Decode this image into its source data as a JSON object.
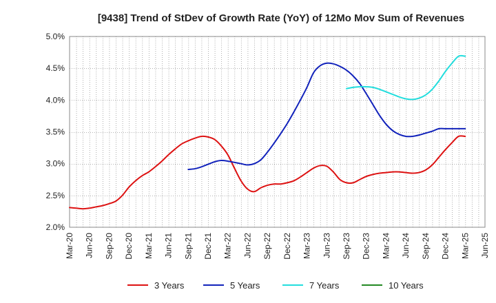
{
  "chart_data": {
    "type": "line",
    "title": "[9438]  Trend of StDev of Growth Rate (YoY) of 12Mo Mov Sum of Revenues",
    "xlabel": "",
    "ylabel": "",
    "ylim": [
      2.0,
      5.0
    ],
    "y_ticks": [
      "2.0%",
      "2.5%",
      "3.0%",
      "3.5%",
      "4.0%",
      "4.5%",
      "5.0%"
    ],
    "y_tick_values": [
      2.0,
      2.5,
      3.0,
      3.5,
      4.0,
      4.5,
      5.0
    ],
    "x_ticks": [
      "Mar-20",
      "Jun-20",
      "Sep-20",
      "Dec-20",
      "Mar-21",
      "Jun-21",
      "Sep-21",
      "Dec-21",
      "Mar-22",
      "Jun-22",
      "Sep-22",
      "Dec-22",
      "Mar-23",
      "Jun-23",
      "Sep-23",
      "Dec-23",
      "Mar-24",
      "Jun-24",
      "Sep-24",
      "Dec-24",
      "Mar-25",
      "Jun-25"
    ],
    "x_range_months": [
      0,
      63
    ],
    "grid": true,
    "legend_position": "bottom",
    "series": [
      {
        "name": "3 Years",
        "color": "#dd1111",
        "x": [
          0,
          1,
          2,
          3,
          4,
          5,
          6,
          7,
          8,
          9,
          10,
          11,
          12,
          13,
          14,
          15,
          16,
          17,
          18,
          19,
          20,
          21,
          22,
          23,
          24,
          25,
          26,
          27,
          28,
          29,
          30,
          31,
          32,
          33,
          34,
          35,
          36,
          37,
          38,
          39,
          40,
          41,
          42,
          43,
          44,
          45,
          46,
          47,
          48,
          49,
          50,
          51,
          52,
          53,
          54,
          55,
          56,
          57,
          58,
          59,
          60
        ],
        "values": [
          2.31,
          2.3,
          2.29,
          2.3,
          2.32,
          2.34,
          2.37,
          2.41,
          2.5,
          2.63,
          2.73,
          2.81,
          2.87,
          2.95,
          3.04,
          3.14,
          3.23,
          3.31,
          3.36,
          3.4,
          3.43,
          3.42,
          3.38,
          3.28,
          3.14,
          2.93,
          2.73,
          2.6,
          2.56,
          2.62,
          2.66,
          2.68,
          2.68,
          2.7,
          2.73,
          2.79,
          2.86,
          2.93,
          2.97,
          2.96,
          2.87,
          2.75,
          2.7,
          2.7,
          2.75,
          2.8,
          2.83,
          2.85,
          2.86,
          2.87,
          2.87,
          2.86,
          2.85,
          2.86,
          2.9,
          2.98,
          3.1,
          3.22,
          3.33,
          3.43,
          3.43
        ]
      },
      {
        "name": "5 Years",
        "color": "#1122bb",
        "x": [
          18,
          19,
          20,
          21,
          22,
          23,
          24,
          25,
          26,
          27,
          28,
          29,
          30,
          31,
          32,
          33,
          34,
          35,
          36,
          37,
          38,
          39,
          40,
          41,
          42,
          43,
          44,
          45,
          46,
          47,
          48,
          49,
          50,
          51,
          52,
          53,
          54,
          55,
          56,
          57,
          58,
          59,
          60
        ],
        "values": [
          2.91,
          2.92,
          2.95,
          2.99,
          3.03,
          3.05,
          3.04,
          3.02,
          3.0,
          2.98,
          3.0,
          3.06,
          3.18,
          3.32,
          3.47,
          3.63,
          3.81,
          4.0,
          4.2,
          4.43,
          4.54,
          4.58,
          4.57,
          4.53,
          4.47,
          4.38,
          4.26,
          4.1,
          3.93,
          3.76,
          3.62,
          3.52,
          3.46,
          3.43,
          3.43,
          3.45,
          3.48,
          3.51,
          3.55,
          3.55,
          3.55,
          3.55,
          3.55
        ]
      },
      {
        "name": "7 Years",
        "color": "#22dddd",
        "x": [
          42,
          43,
          44,
          45,
          46,
          47,
          48,
          49,
          50,
          51,
          52,
          53,
          54,
          55,
          56,
          57,
          58,
          59,
          60
        ],
        "values": [
          4.18,
          4.2,
          4.21,
          4.21,
          4.2,
          4.17,
          4.13,
          4.09,
          4.05,
          4.02,
          4.01,
          4.03,
          4.08,
          4.17,
          4.3,
          4.45,
          4.58,
          4.69,
          4.69
        ]
      },
      {
        "name": "10 Years",
        "color": "#228822",
        "x": [],
        "values": []
      }
    ]
  }
}
